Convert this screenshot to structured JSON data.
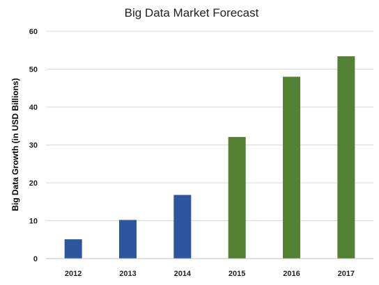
{
  "chart_data": {
    "type": "bar",
    "title": "Big Data Market Forecast",
    "xlabel": "",
    "ylabel": "Big Data Growth (in USD Billions)",
    "categories": [
      "2012",
      "2013",
      "2014",
      "2015",
      "2016",
      "2017"
    ],
    "values": [
      5.1,
      10.2,
      16.8,
      32.1,
      48.0,
      53.4
    ],
    "bar_colors": [
      "#2e569f",
      "#2e569f",
      "#2e569f",
      "#548235",
      "#548235",
      "#548235"
    ],
    "ylim": [
      0,
      60
    ],
    "yticks": [
      "0",
      "10",
      "20",
      "30",
      "40",
      "50",
      "60"
    ],
    "grid": true,
    "legend": "none"
  }
}
